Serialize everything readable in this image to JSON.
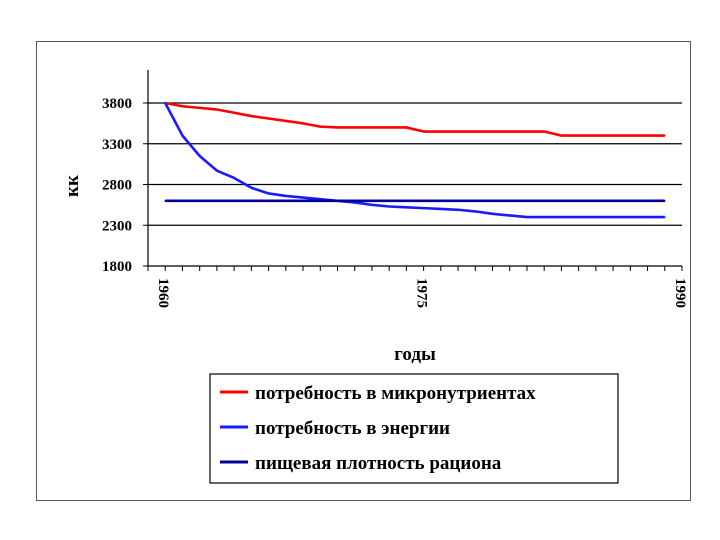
{
  "chart_data": {
    "type": "line",
    "title": "",
    "xlabel": "годы",
    "ylabel": "кк",
    "x_ticks": [
      "1960",
      "1975",
      "1990"
    ],
    "x": [
      1960,
      1961,
      1962,
      1963,
      1964,
      1965,
      1966,
      1967,
      1968,
      1969,
      1970,
      1971,
      1972,
      1973,
      1974,
      1975,
      1976,
      1977,
      1978,
      1979,
      1980,
      1981,
      1982,
      1983,
      1984,
      1985,
      1986,
      1987,
      1988,
      1989
    ],
    "xlim": [
      1959,
      1990
    ],
    "ylim": [
      1800,
      4050
    ],
    "y_ticks": [
      1800,
      2300,
      2800,
      3300,
      3800
    ],
    "grid": true,
    "legend_position": "bottom",
    "series": [
      {
        "name": "потребность в микронутриентах",
        "color": "#ff0000",
        "values": [
          3800,
          3760,
          3740,
          3720,
          3680,
          3640,
          3610,
          3580,
          3550,
          3510,
          3500,
          3500,
          3500,
          3500,
          3500,
          3450,
          3450,
          3450,
          3450,
          3450,
          3450,
          3450,
          3450,
          3400,
          3400,
          3400,
          3400,
          3400,
          3400,
          3400
        ]
      },
      {
        "name": "потребность в энергии",
        "color": "#1a1aff",
        "values": [
          3800,
          3400,
          3150,
          2970,
          2880,
          2760,
          2690,
          2660,
          2640,
          2620,
          2600,
          2580,
          2550,
          2530,
          2520,
          2510,
          2500,
          2490,
          2470,
          2440,
          2420,
          2400,
          2400,
          2400,
          2400,
          2400,
          2400,
          2400,
          2400,
          2400
        ]
      },
      {
        "name": "пищевая плотность рациона",
        "color": "#000099",
        "values": [
          2600,
          2600,
          2600,
          2600,
          2600,
          2600,
          2600,
          2600,
          2600,
          2600,
          2600,
          2600,
          2600,
          2600,
          2600,
          2600,
          2600,
          2600,
          2600,
          2600,
          2600,
          2600,
          2600,
          2600,
          2600,
          2600,
          2600,
          2600,
          2600,
          2600
        ]
      }
    ]
  }
}
